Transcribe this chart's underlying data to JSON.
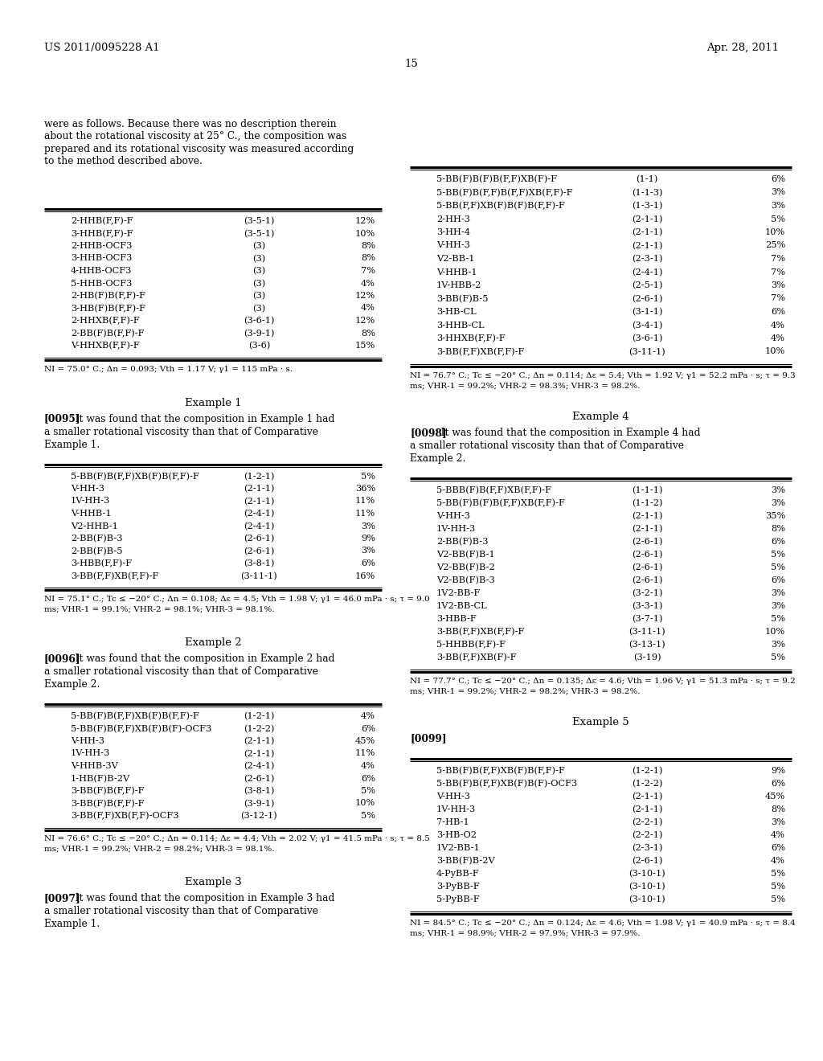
{
  "header_left": "US 2011/0095228 A1",
  "header_right": "Apr. 28, 2011",
  "page_number": "15",
  "background_color": "#ffffff",
  "text_color": "#000000",
  "intro_text": "were as follows. Because there was no description therein\nabout the rotational viscosity at 25° C., the composition was\nprepared and its rotational viscosity was measured according\nto the method described above.",
  "comp_table_rows": [
    [
      "2-HHB(F,F)-F",
      "(3-5-1)",
      "12%"
    ],
    [
      "3-HHB(F,F)-F",
      "(3-5-1)",
      "10%"
    ],
    [
      "2-HHB-OCF3",
      "(3)",
      "8%"
    ],
    [
      "3-HHB-OCF3",
      "(3)",
      "8%"
    ],
    [
      "4-HHB-OCF3",
      "(3)",
      "7%"
    ],
    [
      "5-HHB-OCF3",
      "(3)",
      "4%"
    ],
    [
      "2-HB(F)B(F,F)-F",
      "(3)",
      "12%"
    ],
    [
      "3-HB(F)B(F,F)-F",
      "(3)",
      "4%"
    ],
    [
      "2-HHXB(F,F)-F",
      "(3-6-1)",
      "12%"
    ],
    [
      "2-BB(F)B(F,F)-F",
      "(3-9-1)",
      "8%"
    ],
    [
      "V-HHXB(F,F)-F",
      "(3-6)",
      "15%"
    ]
  ],
  "comp_note": "NI = 75.0° C.; Δn = 0.093; Vth = 1.17 V; γ1 = 115 mPa · s.",
  "right_table1_rows": [
    [
      "5-BB(F)B(F)B(F,F)XB(F)-F",
      "(1-1)",
      "6%"
    ],
    [
      "5-BB(F)B(F,F)B(F,F)XB(F,F)-F",
      "(1-1-3)",
      "3%"
    ],
    [
      "5-BB(F,F)XB(F)B(F)B(F,F)-F",
      "(1-3-1)",
      "3%"
    ],
    [
      "2-HH-3",
      "(2-1-1)",
      "5%"
    ],
    [
      "3-HH-4",
      "(2-1-1)",
      "10%"
    ],
    [
      "V-HH-3",
      "(2-1-1)",
      "25%"
    ],
    [
      "V2-BB-1",
      "(2-3-1)",
      "7%"
    ],
    [
      "V-HHB-1",
      "(2-4-1)",
      "7%"
    ],
    [
      "1V-HBB-2",
      "(2-5-1)",
      "3%"
    ],
    [
      "3-BB(F)B-5",
      "(2-6-1)",
      "7%"
    ],
    [
      "3-HB-CL",
      "(3-1-1)",
      "6%"
    ],
    [
      "3-HHB-CL",
      "(3-4-1)",
      "4%"
    ],
    [
      "3-HHXB(F,F)-F",
      "(3-6-1)",
      "4%"
    ],
    [
      "3-BB(F,F)XB(F,F)-F",
      "(3-11-1)",
      "10%"
    ]
  ],
  "right_note1": "NI = 76.7° C.; Tc ≤ −20° C.; Δn = 0.114; Δε = 5.4; Vth = 1.92 V; γ1 = 52.2 mPa · s; τ = 9.3\nms; VHR-1 = 99.2%; VHR-2 = 98.3%; VHR-3 = 98.2%.",
  "example1_heading": "Example 1",
  "example1_para_bold": "[0095]",
  "example1_para_rest": "   It was found that the composition in Example 1 had\na smaller rotational viscosity than that of Comparative\nExample 1.",
  "ex1_table_rows": [
    [
      "5-BB(F)B(F,F)XB(F)B(F,F)-F",
      "(1-2-1)",
      "5%"
    ],
    [
      "V-HH-3",
      "(2-1-1)",
      "36%"
    ],
    [
      "1V-HH-3",
      "(2-1-1)",
      "11%"
    ],
    [
      "V-HHB-1",
      "(2-4-1)",
      "11%"
    ],
    [
      "V2-HHB-1",
      "(2-4-1)",
      "3%"
    ],
    [
      "2-BB(F)B-3",
      "(2-6-1)",
      "9%"
    ],
    [
      "2-BB(F)B-5",
      "(2-6-1)",
      "3%"
    ],
    [
      "3-HBB(F,F)-F",
      "(3-8-1)",
      "6%"
    ],
    [
      "3-BB(F,F)XB(F,F)-F",
      "(3-11-1)",
      "16%"
    ]
  ],
  "ex1_note": "NI = 75.1° C.; Tc ≤ −20° C.; Δn = 0.108; Δε = 4.5; Vth = 1.98 V; γ1 = 46.0 mPa · s; τ = 9.0\nms; VHR-1 = 99.1%; VHR-2 = 98.1%; VHR-3 = 98.1%.",
  "example2_heading": "Example 2",
  "example2_para_bold": "[0096]",
  "example2_para_rest": "   It was found that the composition in Example 2 had\na smaller rotational viscosity than that of Comparative\nExample 2.",
  "ex2_table_rows": [
    [
      "5-BB(F)B(F,F)XB(F)B(F,F)-F",
      "(1-2-1)",
      "4%"
    ],
    [
      "5-BB(F)B(F,F)XB(F)B(F)-OCF3",
      "(1-2-2)",
      "6%"
    ],
    [
      "V-HH-3",
      "(2-1-1)",
      "45%"
    ],
    [
      "1V-HH-3",
      "(2-1-1)",
      "11%"
    ],
    [
      "V-HHB-3V",
      "(2-4-1)",
      "4%"
    ],
    [
      "1-HB(F)B-2V",
      "(2-6-1)",
      "6%"
    ],
    [
      "3-BB(F)B(F,F)-F",
      "(3-8-1)",
      "5%"
    ],
    [
      "3-BB(F)B(F,F)-F",
      "(3-9-1)",
      "10%"
    ],
    [
      "3-BB(F,F)XB(F,F)-OCF3",
      "(3-12-1)",
      "5%"
    ]
  ],
  "ex2_note": "NI = 76.6° C.; Tc ≤ −20° C.; Δn = 0.114; Δε = 4.4; Vth = 2.02 V; γ1 = 41.5 mPa · s; τ = 8.5\nms; VHR-1 = 99.2%; VHR-2 = 98.2%; VHR-3 = 98.1%.",
  "example3_heading": "Example 3",
  "example3_para_bold": "[0097]",
  "example3_para_rest": "   It was found that the composition in Example 3 had\na smaller rotational viscosity than that of Comparative\nExample 1.",
  "example4_heading": "Example 4",
  "example4_para_bold": "[0098]",
  "example4_para_rest": "   It was found that the composition in Example 4 had\na smaller rotational viscosity than that of Comparative\nExample 2.",
  "ex4_table_rows": [
    [
      "5-BBB(F)B(F,F)XB(F,F)-F",
      "(1-1-1)",
      "3%"
    ],
    [
      "5-BB(F)B(F)B(F,F)XB(F,F)-F",
      "(1-1-2)",
      "3%"
    ],
    [
      "V-HH-3",
      "(2-1-1)",
      "35%"
    ],
    [
      "1V-HH-3",
      "(2-1-1)",
      "8%"
    ],
    [
      "2-BB(F)B-3",
      "(2-6-1)",
      "6%"
    ],
    [
      "V2-BB(F)B-1",
      "(2-6-1)",
      "5%"
    ],
    [
      "V2-BB(F)B-2",
      "(2-6-1)",
      "5%"
    ],
    [
      "V2-BB(F)B-3",
      "(2-6-1)",
      "6%"
    ],
    [
      "1V2-BB-F",
      "(3-2-1)",
      "3%"
    ],
    [
      "1V2-BB-CL",
      "(3-3-1)",
      "3%"
    ],
    [
      "3-HBB-F",
      "(3-7-1)",
      "5%"
    ],
    [
      "3-BB(F,F)XB(F,F)-F",
      "(3-11-1)",
      "10%"
    ],
    [
      "5-HHBB(F,F)-F",
      "(3-13-1)",
      "3%"
    ],
    [
      "3-BB(F,F)XB(F)-F",
      "(3-19)",
      "5%"
    ]
  ],
  "ex4_note": "NI = 77.7° C.; Tc ≤ −20° C.; Δn = 0.135; Δε = 4.6; Vth = 1.96 V; γ1 = 51.3 mPa · s; τ = 9.2\nms; VHR-1 = 99.2%; VHR-2 = 98.2%; VHR-3 = 98.2%.",
  "example5_heading": "Example 5",
  "example5_para_bold": "[0099]",
  "ex5_table_rows": [
    [
      "5-BB(F)B(F,F)XB(F)B(F,F)-F",
      "(1-2-1)",
      "9%"
    ],
    [
      "5-BB(F)B(F,F)XB(F)B(F)-OCF3",
      "(1-2-2)",
      "6%"
    ],
    [
      "V-HH-3",
      "(2-1-1)",
      "45%"
    ],
    [
      "1V-HH-3",
      "(2-1-1)",
      "8%"
    ],
    [
      "7-HB-1",
      "(2-2-1)",
      "3%"
    ],
    [
      "3-HB-O2",
      "(2-2-1)",
      "4%"
    ],
    [
      "1V2-BB-1",
      "(2-3-1)",
      "6%"
    ],
    [
      "3-BB(F)B-2V",
      "(2-6-1)",
      "4%"
    ],
    [
      "4-PyBB-F",
      "(3-10-1)",
      "5%"
    ],
    [
      "3-PyBB-F",
      "(3-10-1)",
      "5%"
    ],
    [
      "5-PyBB-F",
      "(3-10-1)",
      "5%"
    ]
  ],
  "ex5_note": "NI = 84.5° C.; Tc ≤ −20° C.; Δn = 0.124; Δε = 4.6; Vth = 1.98 V; γ1 = 40.9 mPa · s; τ = 8.4\nms; VHR-1 = 98.9%; VHR-2 = 97.9%; VHR-3 = 97.9%."
}
